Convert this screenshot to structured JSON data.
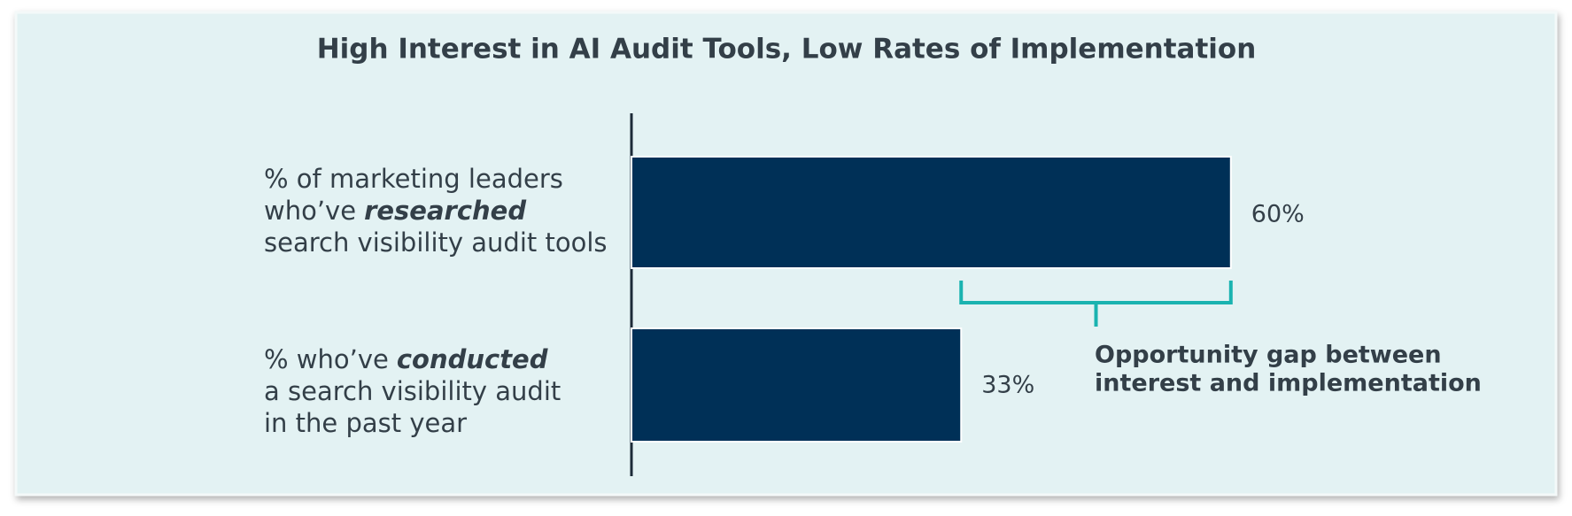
{
  "chart_data": {
    "type": "barh",
    "title": "High Interest in AI Audit Tools, Low Rates of Implementation",
    "categories": [
      [
        "% of marketing leaders",
        "who’ve",
        "researched",
        "search visibility audit tools"
      ],
      [
        "% who’ve",
        "conducted",
        "a search visibility audit",
        "in the past year"
      ]
    ],
    "values": [
      60,
      33
    ],
    "value_labels": [
      "60%",
      "33%"
    ],
    "color": "#003057",
    "xlim": [
      0,
      100
    ],
    "annotation": [
      "Opportunity gap between",
      "interest and implementation"
    ],
    "annotation_color": "#1ab3b0"
  }
}
